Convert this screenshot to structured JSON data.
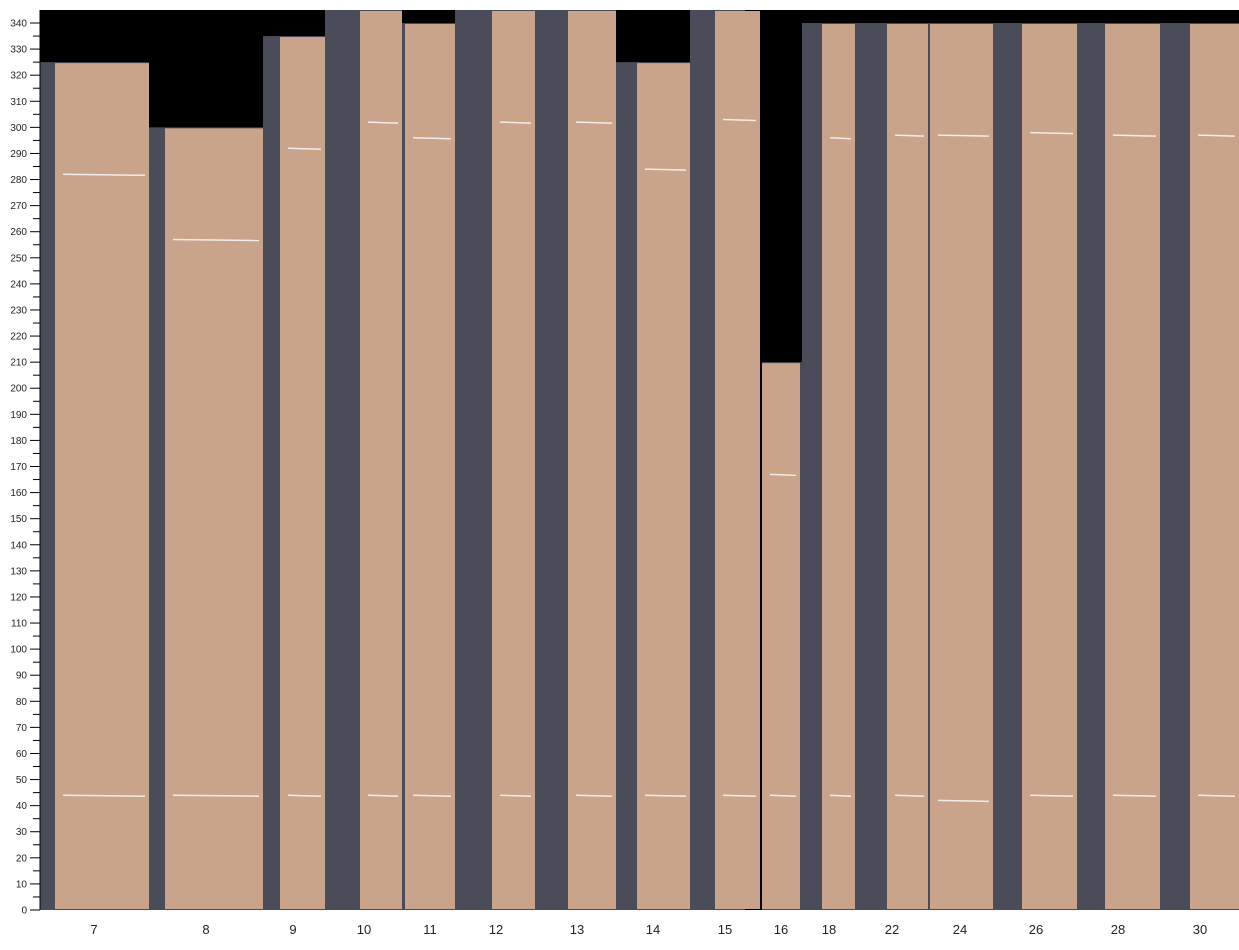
{
  "chart_data": {
    "type": "image-strip",
    "y_axis": {
      "min": 0,
      "max": 340,
      "major_step": 10,
      "minor_step": 5
    },
    "colors": {
      "background": "#000000",
      "belt": "#4a4c5a",
      "wood": "#c9a48a",
      "mark": "#f2ece6"
    },
    "boards": [
      {
        "label": "7",
        "length": 325,
        "marks": [
          282,
          44
        ]
      },
      {
        "label": "8",
        "length": 300,
        "marks": [
          257,
          44
        ]
      },
      {
        "label": "9",
        "length": 335,
        "marks": [
          292,
          44
        ]
      },
      {
        "label": "10",
        "length": 345,
        "marks": [
          302,
          44
        ]
      },
      {
        "label": "11",
        "length": 340,
        "marks": [
          296,
          44
        ]
      },
      {
        "label": "12",
        "length": 345,
        "marks": [
          302,
          44
        ]
      },
      {
        "label": "13",
        "length": 345,
        "marks": [
          302,
          44
        ]
      },
      {
        "label": "14",
        "length": 325,
        "marks": [
          284,
          44
        ]
      },
      {
        "label": "15",
        "length": 345,
        "marks": [
          303,
          44
        ]
      },
      {
        "label": "16",
        "length": 210,
        "marks": [
          167,
          44
        ]
      },
      {
        "label": "18",
        "length": 340,
        "marks": [
          296,
          44
        ]
      },
      {
        "label": "22",
        "length": 340,
        "marks": [
          297,
          44
        ]
      },
      {
        "label": "24",
        "length": 340,
        "marks": [
          297,
          42
        ]
      },
      {
        "label": "26",
        "length": 340,
        "marks": [
          298,
          44
        ]
      },
      {
        "label": "28",
        "length": 340,
        "marks": [
          297,
          44
        ]
      },
      {
        "label": "30",
        "length": 340,
        "marks": [
          297,
          44
        ]
      }
    ]
  }
}
